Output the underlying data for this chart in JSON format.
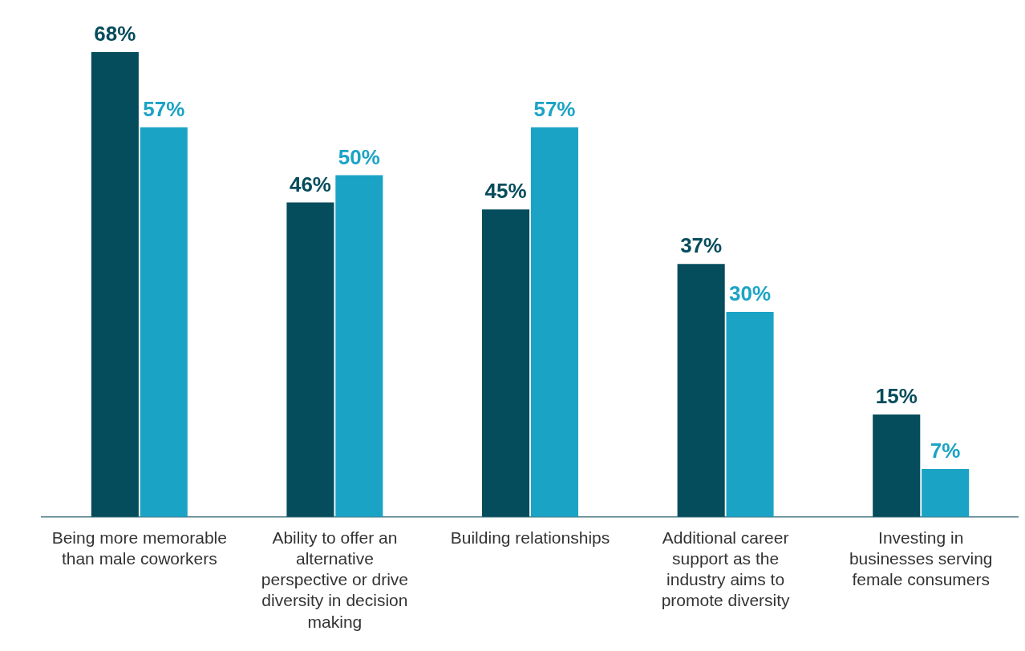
{
  "chart_data": {
    "type": "bar",
    "categories": [
      "Being more memorable than male coworkers",
      "Ability to offer an alternative perspective or drive diversity in decision making",
      "Building relationships",
      "Additional career support as the industry aims to promote diversity",
      "Investing in businesses serving female consumers"
    ],
    "series": [
      {
        "color": "#054c5c",
        "values": [
          68,
          46,
          45,
          37,
          15
        ],
        "value_labels": [
          "68%",
          "46%",
          "45%",
          "37%",
          "15%"
        ]
      },
      {
        "color": "#1ba3c6",
        "values": [
          57,
          50,
          57,
          30,
          7
        ],
        "value_labels": [
          "57%",
          "50%",
          "57%",
          "30%",
          "7%"
        ]
      }
    ],
    "relative": false,
    "grid": false,
    "legend": false
  }
}
